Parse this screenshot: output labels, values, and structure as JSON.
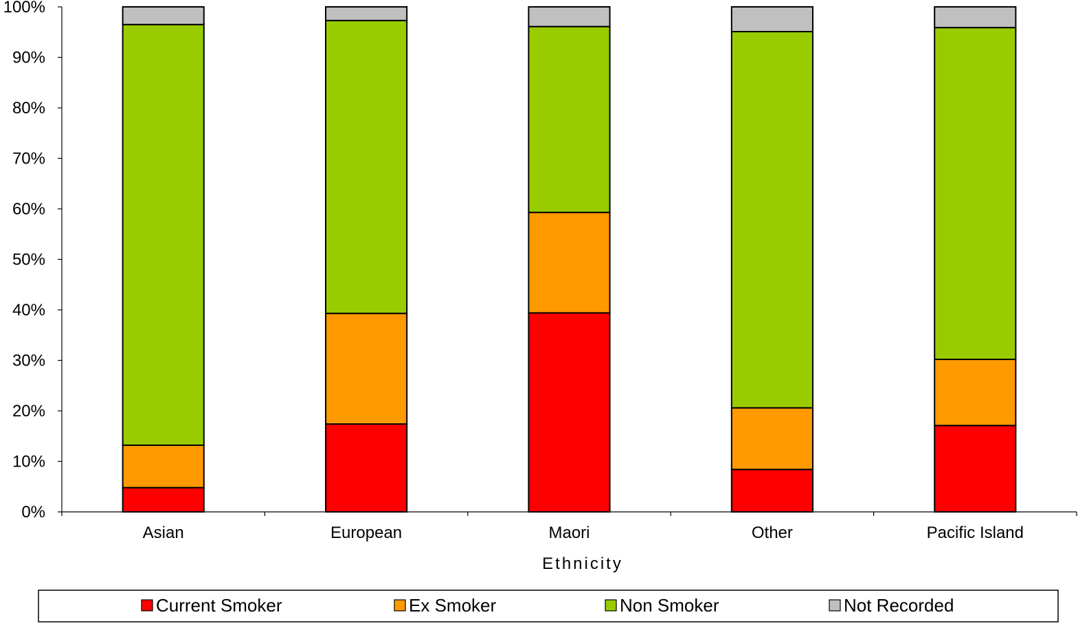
{
  "chart_data": {
    "type": "bar",
    "stacked": true,
    "percent": true,
    "xlabel": "Ethnicity",
    "ylabel": "",
    "ylim": [
      0,
      100
    ],
    "yticks": [
      "0%",
      "10%",
      "20%",
      "30%",
      "40%",
      "50%",
      "60%",
      "70%",
      "80%",
      "90%",
      "100%"
    ],
    "categories": [
      "Asian",
      "European",
      "Maori",
      "Other",
      "Pacific Island"
    ],
    "series": [
      {
        "name": "Current Smoker",
        "color": "#ff0000",
        "values": [
          4.8,
          17.4,
          39.4,
          8.4,
          17.1
        ]
      },
      {
        "name": "Ex Smoker",
        "color": "#ff9900",
        "values": [
          8.4,
          21.9,
          19.9,
          12.2,
          13.1
        ]
      },
      {
        "name": "Non Smoker",
        "color": "#99cc00",
        "values": [
          83.3,
          58.0,
          36.8,
          74.5,
          65.7
        ]
      },
      {
        "name": "Not Recorded",
        "color": "#c0c0c0",
        "values": [
          3.5,
          2.7,
          3.9,
          4.9,
          4.1
        ]
      }
    ],
    "legend_position": "bottom",
    "grid": false
  }
}
